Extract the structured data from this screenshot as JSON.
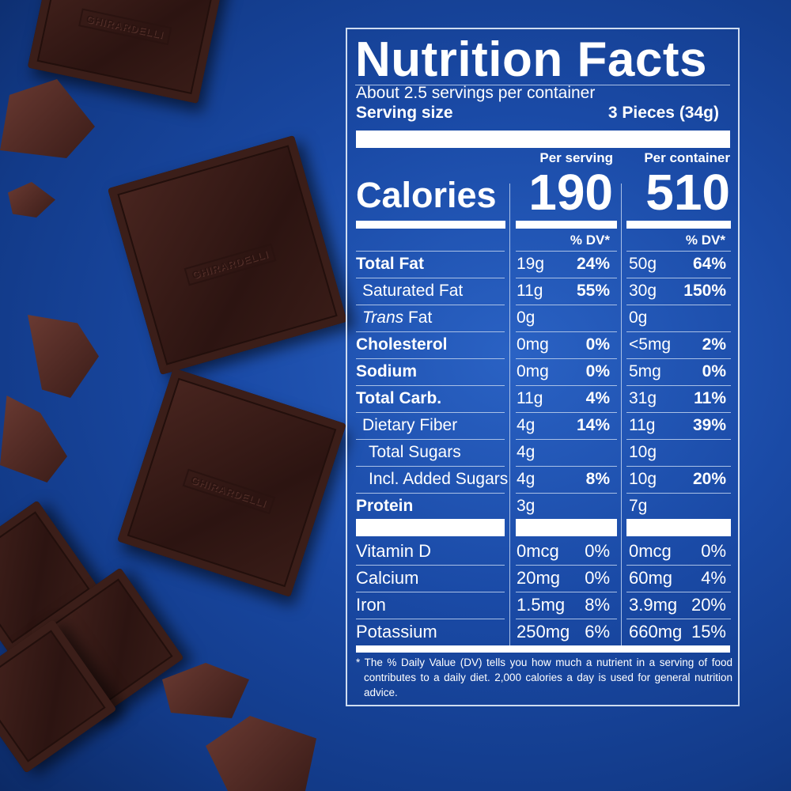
{
  "brand_logo_text": "GHIRARDELLI",
  "colors": {
    "background": "#1a4aa6",
    "text": "#ffffff",
    "chocolate": "#2c1411"
  },
  "label": {
    "title": "Nutrition Facts",
    "servings": "About 2.5 servings per container",
    "serving_size_label": "Serving size",
    "serving_size_value": "3 Pieces (34g)",
    "per_serving": "Per serving",
    "per_container": "Per container",
    "calories_label": "Calories",
    "calories_serving": "190",
    "calories_container": "510",
    "dv_header": "% DV*",
    "nutrients": [
      {
        "name": "Total Fat",
        "bold": true,
        "indent": 0,
        "s_amt": "19g",
        "s_dv": "24%",
        "c_amt": "50g",
        "c_dv": "64%"
      },
      {
        "name": "Saturated Fat",
        "bold": false,
        "indent": 1,
        "s_amt": "11g",
        "s_dv": "55%",
        "c_amt": "30g",
        "c_dv": "150%"
      },
      {
        "name": "Trans",
        "name_suffix": " Fat",
        "bold": false,
        "indent": 1,
        "italic": true,
        "s_amt": "0g",
        "s_dv": "",
        "c_amt": "0g",
        "c_dv": ""
      },
      {
        "name": "Cholesterol",
        "bold": true,
        "indent": 0,
        "s_amt": "0mg",
        "s_dv": "0%",
        "c_amt": "<5mg",
        "c_dv": "2%"
      },
      {
        "name": "Sodium",
        "bold": true,
        "indent": 0,
        "s_amt": "0mg",
        "s_dv": "0%",
        "c_amt": "5mg",
        "c_dv": "0%"
      },
      {
        "name": "Total Carb.",
        "bold": true,
        "indent": 0,
        "s_amt": "11g",
        "s_dv": "4%",
        "c_amt": "31g",
        "c_dv": "11%"
      },
      {
        "name": "Dietary Fiber",
        "bold": false,
        "indent": 1,
        "s_amt": "4g",
        "s_dv": "14%",
        "c_amt": "11g",
        "c_dv": "39%"
      },
      {
        "name": "Total Sugars",
        "bold": false,
        "indent": 2,
        "s_amt": "4g",
        "s_dv": "",
        "c_amt": "10g",
        "c_dv": ""
      },
      {
        "name": "Incl. Added Sugars",
        "bold": false,
        "indent": 2,
        "s_amt": "4g",
        "s_dv": "8%",
        "c_amt": "10g",
        "c_dv": "20%"
      },
      {
        "name": "Protein",
        "bold": true,
        "indent": 0,
        "s_amt": "3g",
        "s_dv": "",
        "c_amt": "7g",
        "c_dv": ""
      }
    ],
    "vitamins": [
      {
        "name": "Vitamin D",
        "s_amt": "0mcg",
        "s_dv": "0%",
        "c_amt": "0mcg",
        "c_dv": "0%"
      },
      {
        "name": "Calcium",
        "s_amt": "20mg",
        "s_dv": "0%",
        "c_amt": "60mg",
        "c_dv": "4%"
      },
      {
        "name": "Iron",
        "s_amt": "1.5mg",
        "s_dv": "8%",
        "c_amt": "3.9mg",
        "c_dv": "20%"
      },
      {
        "name": "Potassium",
        "s_amt": "250mg",
        "s_dv": "6%",
        "c_amt": "660mg",
        "c_dv": "15%"
      }
    ],
    "footnote": "* The % Daily Value (DV) tells you how much a nutrient in a serving of food contributes to a daily diet. 2,000 calories a day is used for general nutrition advice."
  }
}
